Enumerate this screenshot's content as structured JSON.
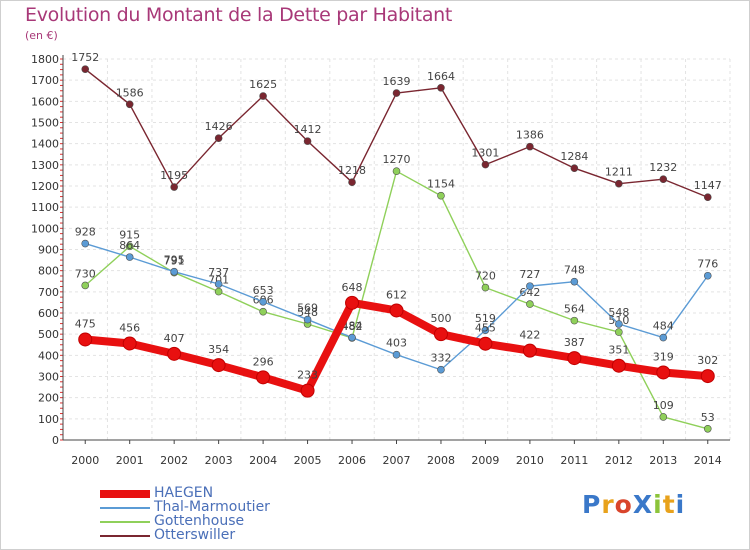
{
  "header": {
    "title": "Evolution du Montant de la Dette par Habitant",
    "subtitle": "(en €)"
  },
  "logo": {
    "text": "ProXiti",
    "colors": [
      "#3a78c9",
      "#e8a21c",
      "#d9452b",
      "#3a78c9",
      "#8cc43a",
      "#e8a21c",
      "#3a78c9"
    ]
  },
  "chart_data": {
    "type": "line",
    "title": "Evolution du Montant de la Dette par Habitant",
    "subtitle": "(en €)",
    "x": [
      "2000",
      "2001",
      "2002",
      "2003",
      "2004",
      "2005",
      "2006",
      "2007",
      "2008",
      "2009",
      "2010",
      "2011",
      "2012",
      "2013",
      "2014"
    ],
    "ylim": [
      0,
      1800
    ],
    "yticks": [
      0,
      100,
      200,
      300,
      400,
      500,
      600,
      700,
      800,
      900,
      1000,
      1100,
      1200,
      1300,
      1400,
      1500,
      1600,
      1700,
      1800
    ],
    "grid": true,
    "legend_position": "bottom-left",
    "series": [
      {
        "name": "HAEGEN",
        "color": "#e81010",
        "values": [
          475,
          456,
          407,
          354,
          296,
          233,
          648,
          612,
          500,
          455,
          422,
          387,
          351,
          319,
          302
        ]
      },
      {
        "name": "Thal-Marmoutier",
        "color": "#5b9bd5",
        "values": [
          928,
          864,
          795,
          737,
          653,
          569,
          484,
          403,
          332,
          519,
          727,
          748,
          548,
          484,
          776
        ]
      },
      {
        "name": "Gottenhouse",
        "color": "#8fd05a",
        "values": [
          730,
          915,
          791,
          701,
          606,
          548,
          482,
          1270,
          1154,
          720,
          642,
          564,
          510,
          109,
          53
        ]
      },
      {
        "name": "Otterswiller",
        "color": "#7a2630",
        "values": [
          1752,
          1586,
          1195,
          1426,
          1625,
          1412,
          1218,
          1639,
          1664,
          1301,
          1386,
          1284,
          1211,
          1232,
          1147
        ]
      }
    ]
  }
}
